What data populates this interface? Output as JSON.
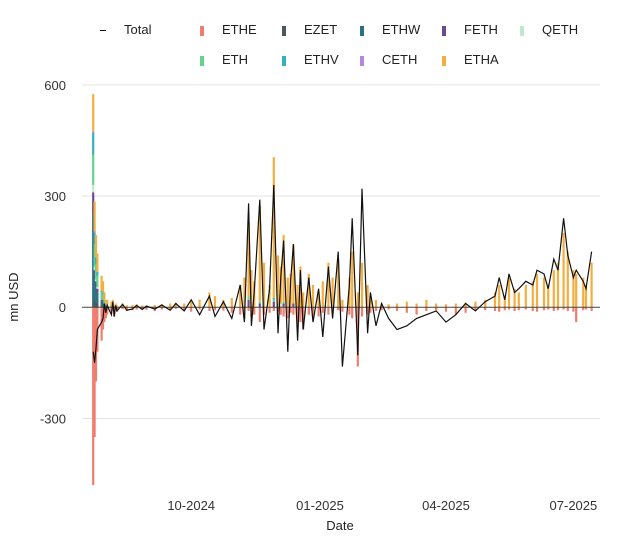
{
  "chart_data": {
    "type": "bar",
    "title": "",
    "xlabel": "Date",
    "ylabel": "mn USD",
    "ylim": [
      -520,
      640
    ],
    "yticks": [
      600,
      300,
      0,
      -300
    ],
    "ytick_labels": [
      "600",
      "300",
      "0",
      "-300"
    ],
    "xlim": [
      "2024-07-15",
      "2025-07-20"
    ],
    "xticks": [
      "2024-10-01",
      "2025-01-01",
      "2025-04-01",
      "2025-07-01"
    ],
    "xtick_labels": [
      "10-2024",
      "01-2025",
      "04-2025",
      "07-2025"
    ],
    "grid": true,
    "legend_position": "top",
    "legend": [
      {
        "name": "Total",
        "color": "#111111",
        "kind": "line"
      },
      {
        "name": "ETHE",
        "color": "#f07d6e",
        "kind": "bar"
      },
      {
        "name": "EZET",
        "color": "#4a5a5c",
        "kind": "bar"
      },
      {
        "name": "ETHW",
        "color": "#2e7184",
        "kind": "bar"
      },
      {
        "name": "FETH",
        "color": "#6b4a8e",
        "kind": "bar"
      },
      {
        "name": "QETH",
        "color": "#bfe9cf",
        "kind": "bar"
      },
      {
        "name": "ETH",
        "color": "#63d48e",
        "kind": "bar"
      },
      {
        "name": "ETHV",
        "color": "#33b4bc",
        "kind": "bar"
      },
      {
        "name": "CETH",
        "color": "#b389e0",
        "kind": "bar"
      },
      {
        "name": "ETHA",
        "color": "#f5ae3d",
        "kind": "bar"
      }
    ],
    "dates": [
      "2024-07-23",
      "2024-07-24",
      "2024-07-25",
      "2024-07-26",
      "2024-07-29",
      "2024-07-30",
      "2024-07-31",
      "2024-08-01",
      "2024-08-02",
      "2024-08-05",
      "2024-08-06",
      "2024-08-07",
      "2024-08-08",
      "2024-08-09",
      "2024-08-13",
      "2024-08-16",
      "2024-08-20",
      "2024-08-23",
      "2024-08-27",
      "2024-08-30",
      "2024-09-05",
      "2024-09-10",
      "2024-09-16",
      "2024-09-20",
      "2024-09-26",
      "2024-10-01",
      "2024-10-07",
      "2024-10-14",
      "2024-10-18",
      "2024-10-24",
      "2024-10-30",
      "2024-11-05",
      "2024-11-08",
      "2024-11-11",
      "2024-11-13",
      "2024-11-15",
      "2024-11-19",
      "2024-11-22",
      "2024-11-26",
      "2024-11-29",
      "2024-12-02",
      "2024-12-04",
      "2024-12-06",
      "2024-12-09",
      "2024-12-11",
      "2024-12-13",
      "2024-12-16",
      "2024-12-18",
      "2024-12-20",
      "2024-12-24",
      "2024-12-27",
      "2024-12-31",
      "2025-01-03",
      "2025-01-07",
      "2025-01-10",
      "2025-01-14",
      "2025-01-17",
      "2025-01-22",
      "2025-01-24",
      "2025-01-28",
      "2025-01-31",
      "2025-02-04",
      "2025-02-06",
      "2025-02-10",
      "2025-02-14",
      "2025-02-19",
      "2025-02-25",
      "2025-03-04",
      "2025-03-11",
      "2025-03-18",
      "2025-03-25",
      "2025-04-01",
      "2025-04-08",
      "2025-04-15",
      "2025-04-22",
      "2025-04-29",
      "2025-05-06",
      "2025-05-09",
      "2025-05-13",
      "2025-05-16",
      "2025-05-20",
      "2025-05-23",
      "2025-05-28",
      "2025-06-02",
      "2025-06-05",
      "2025-06-10",
      "2025-06-13",
      "2025-06-17",
      "2025-06-20",
      "2025-06-24",
      "2025-06-27",
      "2025-07-01",
      "2025-07-03",
      "2025-07-08",
      "2025-07-10",
      "2025-07-14"
    ],
    "series": [
      {
        "name": "ETHE",
        "values": [
          -480,
          -350,
          -200,
          -120,
          -90,
          -60,
          -40,
          -30,
          -20,
          -15,
          -10,
          -25,
          -8,
          -12,
          -5,
          -10,
          -8,
          -6,
          -5,
          -7,
          -10,
          -6,
          -5,
          -4,
          -8,
          -12,
          -6,
          -10,
          -8,
          -9,
          -15,
          -20,
          -30,
          -10,
          -25,
          -20,
          -40,
          -20,
          -15,
          -10,
          -12,
          -20,
          -25,
          -30,
          -15,
          -20,
          -50,
          -40,
          -60,
          -20,
          -30,
          -25,
          -15,
          -20,
          -10,
          -8,
          -12,
          -20,
          -30,
          -160,
          -25,
          -20,
          -15,
          -10,
          -8,
          -6,
          -10,
          -15,
          -20,
          -10,
          -8,
          -12,
          -20,
          -15,
          -10,
          -8,
          -10,
          -12,
          -8,
          -6,
          -10,
          -8,
          -6,
          -10,
          -12,
          -8,
          -6,
          -10,
          -8,
          -6,
          -10,
          -12,
          -40,
          -8,
          -6,
          -10
        ]
      },
      {
        "name": "EZET",
        "values": [
          0,
          20,
          15,
          10,
          5,
          5,
          0,
          0,
          0,
          0,
          0,
          0,
          0,
          0,
          0,
          0,
          0,
          0,
          0,
          0,
          0,
          0,
          0,
          0,
          0,
          0,
          0,
          0,
          0,
          0,
          0,
          0,
          0,
          0,
          0,
          0,
          0,
          0,
          0,
          0,
          0,
          0,
          0,
          0,
          0,
          0,
          0,
          0,
          0,
          0,
          0,
          0,
          0,
          0,
          0,
          0,
          0,
          0,
          0,
          0,
          0,
          0,
          0,
          0,
          0,
          0,
          0,
          0,
          0,
          0,
          0,
          0,
          0,
          0,
          0,
          0,
          0,
          0,
          0,
          0,
          0,
          0,
          0,
          0,
          0,
          0,
          0,
          0,
          0,
          0,
          0,
          0,
          0,
          0,
          0,
          0
        ]
      },
      {
        "name": "ETHW",
        "values": [
          250,
          60,
          40,
          30,
          10,
          10,
          5,
          5,
          0,
          0,
          0,
          0,
          0,
          0,
          0,
          0,
          0,
          0,
          0,
          0,
          0,
          0,
          0,
          0,
          0,
          0,
          0,
          0,
          0,
          0,
          0,
          0,
          0,
          0,
          0,
          0,
          0,
          0,
          0,
          0,
          0,
          0,
          0,
          0,
          0,
          0,
          0,
          0,
          0,
          0,
          0,
          0,
          0,
          0,
          0,
          0,
          0,
          0,
          0,
          0,
          0,
          0,
          0,
          0,
          0,
          0,
          0,
          0,
          0,
          0,
          0,
          0,
          0,
          0,
          0,
          0,
          0,
          0,
          0,
          0,
          0,
          0,
          0,
          0,
          0,
          0,
          0,
          0,
          0,
          0,
          0,
          0,
          0,
          0,
          0,
          0
        ]
      },
      {
        "name": "FETH",
        "values": [
          60,
          20,
          15,
          10,
          5,
          5,
          5,
          0,
          0,
          0,
          0,
          0,
          0,
          0,
          0,
          0,
          0,
          0,
          0,
          0,
          0,
          0,
          0,
          0,
          0,
          0,
          0,
          0,
          0,
          0,
          0,
          0,
          0,
          20,
          0,
          0,
          10,
          0,
          0,
          15,
          0,
          0,
          10,
          0,
          0,
          10,
          0,
          0,
          0,
          0,
          0,
          0,
          0,
          0,
          0,
          0,
          0,
          0,
          0,
          0,
          0,
          0,
          0,
          0,
          0,
          0,
          0,
          0,
          0,
          0,
          0,
          0,
          0,
          0,
          0,
          0,
          0,
          0,
          0,
          0,
          0,
          0,
          0,
          0,
          0,
          0,
          0,
          0,
          0,
          0,
          0,
          0,
          0,
          0,
          0,
          0
        ]
      },
      {
        "name": "QETH",
        "values": [
          20,
          10,
          5,
          5,
          0,
          0,
          0,
          0,
          0,
          0,
          0,
          0,
          0,
          0,
          0,
          0,
          0,
          0,
          0,
          0,
          0,
          0,
          0,
          0,
          0,
          0,
          0,
          0,
          0,
          0,
          0,
          0,
          0,
          0,
          0,
          0,
          0,
          0,
          0,
          0,
          0,
          10,
          0,
          0,
          0,
          0,
          0,
          0,
          0,
          0,
          0,
          0,
          0,
          0,
          0,
          0,
          0,
          0,
          0,
          0,
          0,
          0,
          0,
          0,
          0,
          0,
          0,
          0,
          0,
          0,
          0,
          0,
          0,
          0,
          0,
          0,
          0,
          0,
          0,
          0,
          0,
          0,
          0,
          0,
          0,
          0,
          0,
          0,
          0,
          0,
          0,
          0,
          0,
          0,
          0,
          0
        ]
      },
      {
        "name": "ETH",
        "values": [
          80,
          60,
          40,
          30,
          20,
          15,
          10,
          5,
          5,
          5,
          0,
          0,
          0,
          0,
          0,
          0,
          0,
          0,
          0,
          0,
          0,
          0,
          0,
          0,
          0,
          0,
          0,
          0,
          0,
          0,
          0,
          0,
          0,
          10,
          0,
          0,
          5,
          0,
          0,
          5,
          0,
          0,
          5,
          0,
          0,
          0,
          0,
          0,
          0,
          0,
          0,
          0,
          0,
          0,
          0,
          0,
          0,
          0,
          0,
          0,
          0,
          0,
          0,
          0,
          0,
          0,
          0,
          0,
          0,
          0,
          0,
          0,
          0,
          0,
          0,
          0,
          0,
          0,
          0,
          0,
          0,
          0,
          0,
          0,
          0,
          0,
          0,
          0,
          0,
          0,
          0,
          0,
          0,
          0,
          0,
          0
        ]
      },
      {
        "name": "ETHV",
        "values": [
          60,
          30,
          20,
          10,
          5,
          5,
          0,
          0,
          0,
          0,
          0,
          0,
          0,
          0,
          0,
          0,
          0,
          0,
          0,
          0,
          0,
          0,
          0,
          0,
          0,
          0,
          0,
          0,
          0,
          0,
          0,
          0,
          0,
          0,
          0,
          0,
          0,
          0,
          0,
          5,
          0,
          0,
          0,
          0,
          0,
          0,
          0,
          0,
          0,
          0,
          0,
          0,
          0,
          0,
          0,
          0,
          0,
          0,
          0,
          0,
          0,
          0,
          0,
          0,
          0,
          0,
          0,
          0,
          0,
          0,
          0,
          0,
          0,
          0,
          0,
          0,
          0,
          0,
          0,
          0,
          0,
          0,
          0,
          0,
          0,
          0,
          0,
          0,
          0,
          0,
          0,
          0,
          0,
          0,
          0,
          0
        ]
      },
      {
        "name": "CETH",
        "values": [
          5,
          5,
          0,
          0,
          0,
          0,
          0,
          0,
          0,
          0,
          0,
          0,
          0,
          0,
          0,
          0,
          0,
          0,
          0,
          0,
          0,
          0,
          0,
          0,
          0,
          0,
          0,
          0,
          0,
          0,
          0,
          0,
          0,
          0,
          0,
          0,
          0,
          0,
          0,
          0,
          0,
          0,
          0,
          0,
          0,
          0,
          0,
          0,
          0,
          0,
          0,
          0,
          0,
          0,
          0,
          0,
          0,
          0,
          0,
          0,
          0,
          0,
          0,
          0,
          0,
          0,
          0,
          0,
          0,
          0,
          0,
          0,
          0,
          0,
          0,
          0,
          0,
          0,
          0,
          0,
          0,
          0,
          0,
          0,
          0,
          0,
          0,
          0,
          0,
          0,
          0,
          0,
          0,
          0,
          0,
          0
        ]
      },
      {
        "name": "ETHA",
        "values": [
          100,
          80,
          60,
          50,
          40,
          30,
          20,
          10,
          15,
          10,
          20,
          5,
          10,
          5,
          10,
          5,
          6,
          8,
          5,
          4,
          6,
          8,
          10,
          12,
          10,
          15,
          20,
          40,
          30,
          20,
          25,
          60,
          80,
          200,
          100,
          70,
          260,
          120,
          60,
          380,
          140,
          100,
          180,
          80,
          90,
          160,
          60,
          110,
          40,
          90,
          60,
          40,
          70,
          120,
          80,
          130,
          20,
          80,
          150,
          40,
          120,
          60,
          30,
          20,
          10,
          8,
          10,
          15,
          10,
          20,
          10,
          8,
          10,
          12,
          15,
          20,
          40,
          60,
          30,
          80,
          50,
          40,
          60,
          70,
          90,
          80,
          60,
          100,
          120,
          200,
          150,
          100,
          90,
          80,
          60,
          120
        ]
      }
    ],
    "total": [
      -120,
      -150,
      -110,
      -60,
      -40,
      -30,
      10,
      -15,
      5,
      -20,
      15,
      -25,
      5,
      -10,
      8,
      -8,
      -5,
      5,
      -6,
      3,
      -5,
      6,
      -8,
      10,
      -10,
      20,
      -20,
      30,
      -25,
      15,
      -30,
      60,
      -40,
      280,
      -50,
      40,
      290,
      -60,
      50,
      330,
      -70,
      80,
      180,
      -120,
      70,
      170,
      -90,
      100,
      -60,
      80,
      -40,
      50,
      -80,
      110,
      -30,
      150,
      -160,
      60,
      240,
      -130,
      320,
      -70,
      40,
      -50,
      10,
      -30,
      -60,
      -50,
      -30,
      -20,
      -10,
      -40,
      -20,
      10,
      -10,
      15,
      30,
      80,
      20,
      90,
      40,
      50,
      70,
      60,
      100,
      90,
      50,
      130,
      100,
      240,
      140,
      80,
      100,
      70,
      50,
      150
    ]
  }
}
